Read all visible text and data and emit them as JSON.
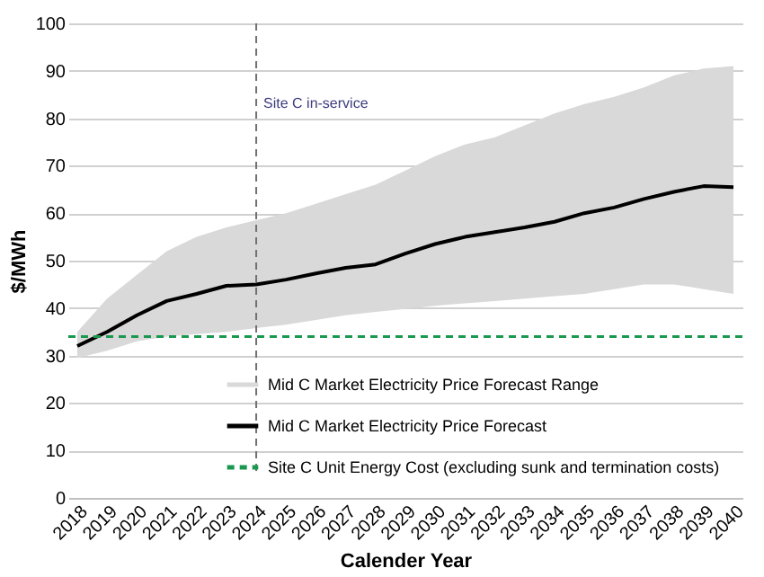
{
  "chart_data": {
    "type": "line",
    "xlabel": "Calender Year",
    "ylabel": "$/MWh",
    "categories": [
      "2018",
      "2019",
      "2020",
      "2021",
      "2022",
      "2023",
      "2024",
      "2025",
      "2026",
      "2027",
      "2028",
      "2029",
      "2030",
      "2031",
      "2032",
      "2033",
      "2034",
      "2035",
      "2036",
      "2037",
      "2038",
      "2039",
      "2040"
    ],
    "series": [
      {
        "name": "Mid C Market Electricity Price Forecast",
        "color": "#000000",
        "line_style": "solid",
        "values": [
          32,
          35,
          38.5,
          41.5,
          43,
          44.7,
          45,
          46,
          47.3,
          48.5,
          49.2,
          51.5,
          53.5,
          55,
          56,
          57,
          58.2,
          60,
          61.2,
          63,
          64.5,
          65.7,
          65.5
        ],
        "lower": [
          29.5,
          31,
          33,
          34,
          34.5,
          35,
          35.8,
          36.5,
          37.5,
          38.5,
          39.2,
          39.8,
          40.5,
          41,
          41.5,
          42,
          42.5,
          43,
          44,
          45,
          45,
          44,
          43
        ],
        "upper": [
          35,
          42,
          47,
          52,
          55,
          57,
          58.5,
          60,
          62,
          64,
          66,
          69,
          72,
          74.5,
          76,
          78.5,
          81,
          83,
          84.5,
          86.5,
          89,
          90.5,
          91
        ]
      }
    ],
    "annotations": [
      "Mid C Market Electricity Price Forecast Range"
    ],
    "ref_lines": [
      {
        "axis": "y",
        "value": 34,
        "label": "Site C Unit Energy Cost (excluding sunk and termination costs)",
        "color": "#1a9850",
        "line_style": "dashed"
      },
      {
        "axis": "x",
        "value": "2024",
        "label": "Site C in-service",
        "color": "#707070",
        "line_style": "dashed"
      }
    ],
    "ylim": [
      0,
      100
    ],
    "yticks": [
      0,
      10,
      20,
      30,
      40,
      50,
      60,
      70,
      80,
      90,
      100
    ],
    "grid": "y",
    "legend": "bottom right"
  }
}
